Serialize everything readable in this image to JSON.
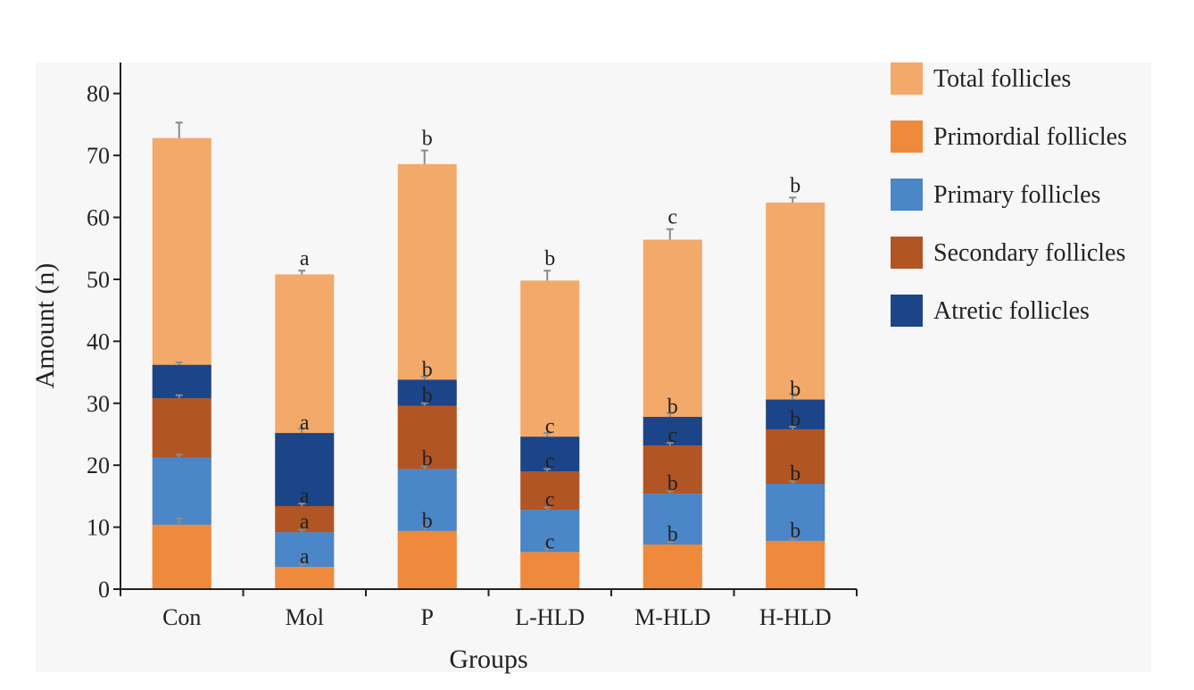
{
  "chart_data": {
    "type": "bar",
    "subtype": "stacked-with-overlay-total",
    "title": "",
    "xlabel": "Groups",
    "ylabel": "Amount (n)",
    "ylim": [
      0,
      85
    ],
    "yticks": [
      0,
      10,
      20,
      30,
      40,
      50,
      60,
      70,
      80
    ],
    "categories": [
      "Con",
      "Mol",
      "P",
      "L-HLD",
      "M-HLD",
      "H-HLD"
    ],
    "total": {
      "name": "Total follicles",
      "color": "#f2a96a",
      "values": [
        72.8,
        50.8,
        68.6,
        49.8,
        56.4,
        62.4
      ],
      "errors": [
        2.5,
        0.6,
        2.2,
        1.6,
        1.7,
        0.8
      ],
      "labels": [
        "",
        "a",
        "b",
        "b",
        "c",
        "b"
      ]
    },
    "series": [
      {
        "name": "Primordial follicles",
        "color": "#ef8a3c",
        "values": [
          10.4,
          3.6,
          9.4,
          6.0,
          7.2,
          7.8
        ],
        "errors": [
          1.0,
          0.5,
          0.8,
          0.5,
          0.4,
          0.3
        ],
        "labels": [
          "",
          "a",
          "b",
          "c",
          "b",
          "b"
        ]
      },
      {
        "name": "Primary follicles",
        "color": "#4a86c8",
        "values": [
          10.8,
          5.6,
          10.0,
          6.8,
          8.2,
          9.2
        ],
        "errors": [
          0.5,
          0.4,
          0.4,
          0.4,
          0.4,
          0.4
        ],
        "labels": [
          "",
          "a",
          "b",
          "c",
          "b",
          "b"
        ]
      },
      {
        "name": "Secondary follicles",
        "color": "#b25524",
        "values": [
          9.6,
          4.2,
          10.2,
          6.2,
          7.8,
          8.8
        ],
        "errors": [
          0.5,
          0.4,
          0.4,
          0.4,
          0.4,
          0.4
        ],
        "labels": [
          "",
          "a",
          "b",
          "c",
          "c",
          "b"
        ]
      },
      {
        "name": "Atretic follicles",
        "color": "#1c4488",
        "values": [
          5.4,
          11.8,
          4.2,
          5.6,
          4.6,
          4.8
        ],
        "errors": [
          0.4,
          0.7,
          0.5,
          0.6,
          0.6,
          0.9
        ],
        "labels": [
          "",
          "a",
          "b",
          "c",
          "b",
          "b"
        ]
      }
    ],
    "legend": {
      "position": "right",
      "entries": [
        "Total follicles",
        "Primordial follicles",
        "Primary follicles",
        "Secondary follicles",
        "Atretic follicles"
      ]
    },
    "grid": false
  }
}
